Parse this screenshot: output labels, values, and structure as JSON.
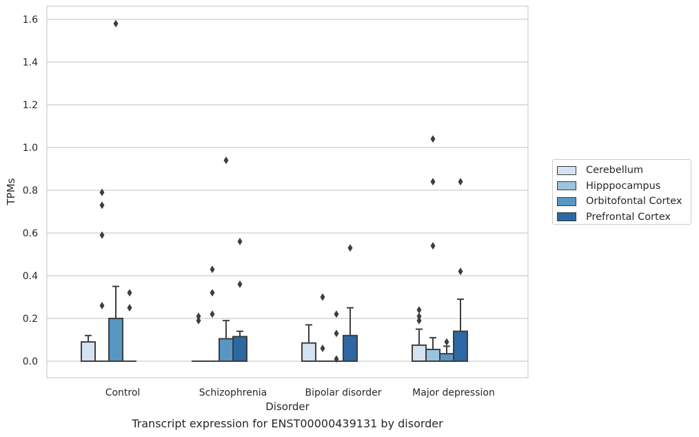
{
  "chart_data": {
    "type": "boxplot",
    "caption": "Transcript expression for ENST00000439131 by disorder",
    "xlabel": "Disorder",
    "ylabel": "TPMs",
    "ylim": [
      -0.08,
      1.66
    ],
    "yticks": [
      "0.0",
      "0.2",
      "0.4",
      "0.6",
      "0.8",
      "1.0",
      "1.2",
      "1.4",
      "1.6"
    ],
    "grid": "horizontal",
    "legend_position": "right",
    "categories": [
      "Control",
      "Schizophrenia",
      "Bipolar disorder",
      "Major depression"
    ],
    "series": [
      {
        "name": "Cerebellum",
        "color": "#d4e3f2",
        "boxes": [
          {
            "q1": 0.0,
            "median": 0.0,
            "q3": 0.09,
            "whislo": 0.0,
            "whishi": 0.12,
            "fliers": []
          },
          {
            "q1": 0.0,
            "median": 0.0,
            "q3": 0.0,
            "whislo": 0.0,
            "whishi": 0.0,
            "fliers": [
              0.19,
              0.21
            ]
          },
          {
            "q1": 0.0,
            "median": 0.0,
            "q3": 0.085,
            "whislo": 0.0,
            "whishi": 0.17,
            "fliers": []
          },
          {
            "q1": 0.0,
            "median": 0.0,
            "q3": 0.075,
            "whislo": 0.0,
            "whishi": 0.15,
            "fliers": [
              0.19,
              0.21,
              0.24
            ]
          }
        ]
      },
      {
        "name": "Hipppocampus",
        "color": "#9cc3de",
        "boxes": [
          {
            "q1": 0.0,
            "median": 0.0,
            "q3": 0.0,
            "whislo": 0.0,
            "whishi": 0.0,
            "fliers": [
              0.26,
              0.59,
              0.73,
              0.79
            ]
          },
          {
            "q1": 0.0,
            "median": 0.0,
            "q3": 0.0,
            "whislo": 0.0,
            "whishi": 0.0,
            "fliers": [
              0.22,
              0.32,
              0.43
            ]
          },
          {
            "q1": 0.0,
            "median": 0.0,
            "q3": 0.0,
            "whislo": 0.0,
            "whishi": 0.0,
            "fliers": [
              0.06,
              0.3
            ]
          },
          {
            "q1": 0.0,
            "median": 0.0,
            "q3": 0.055,
            "whislo": 0.0,
            "whishi": 0.11,
            "fliers": [
              0.54,
              0.84,
              1.04
            ]
          }
        ]
      },
      {
        "name": "Orbitofontal Cortex",
        "color": "#5797c4",
        "boxes": [
          {
            "q1": 0.0,
            "median": 0.0,
            "q3": 0.2,
            "whislo": 0.0,
            "whishi": 0.35,
            "fliers": [
              1.58
            ]
          },
          {
            "q1": 0.0,
            "median": 0.0,
            "q3": 0.105,
            "whislo": 0.0,
            "whishi": 0.19,
            "fliers": [
              0.94
            ]
          },
          {
            "q1": 0.0,
            "median": 0.0,
            "q3": 0.0,
            "whislo": 0.0,
            "whishi": 0.0,
            "fliers": [
              0.01,
              0.13,
              0.22
            ]
          },
          {
            "q1": 0.0,
            "median": 0.0,
            "q3": 0.035,
            "whislo": 0.0,
            "whishi": 0.07,
            "fliers": [
              0.09
            ]
          }
        ]
      },
      {
        "name": "Prefrontal Cortex",
        "color": "#2b68a4",
        "boxes": [
          {
            "q1": 0.0,
            "median": 0.0,
            "q3": 0.0,
            "whislo": 0.0,
            "whishi": 0.0,
            "fliers": [
              0.25,
              0.32
            ]
          },
          {
            "q1": 0.0,
            "median": 0.0,
            "q3": 0.115,
            "whislo": 0.0,
            "whishi": 0.14,
            "fliers": [
              0.36,
              0.56
            ]
          },
          {
            "q1": 0.0,
            "median": 0.0,
            "q3": 0.12,
            "whislo": 0.0,
            "whishi": 0.25,
            "fliers": [
              0.53
            ]
          },
          {
            "q1": 0.0,
            "median": 0.0,
            "q3": 0.14,
            "whislo": 0.0,
            "whishi": 0.29,
            "fliers": [
              0.42,
              0.84
            ]
          }
        ]
      }
    ]
  }
}
